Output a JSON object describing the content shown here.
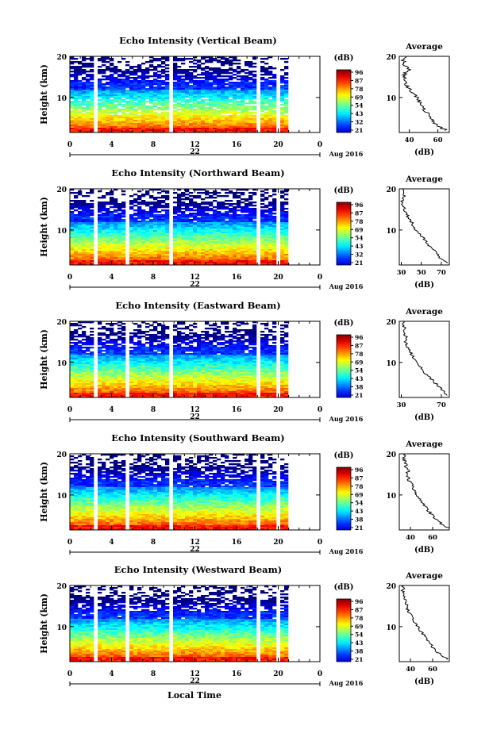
{
  "figure": {
    "date_label": "Aug 2016",
    "day_label": "22",
    "x_axis_label": "Local Time",
    "colorbar_title": "(dB)",
    "colorbar_ticks": [
      "96",
      "87",
      "78",
      "69",
      "54",
      "43",
      "32",
      "21"
    ],
    "colorbar_ticks_alt": [
      "96",
      "87",
      "78",
      "69",
      "54",
      "43",
      "38",
      "21"
    ],
    "avg_title": "Average",
    "avg_xlabel": "(dB)"
  },
  "chart_data": [
    {
      "type": "heatmap",
      "title": "Echo Intensity (Vertical Beam)",
      "ylabel": "Height (km)",
      "xlim": [
        0,
        24
      ],
      "ylim": [
        1.5,
        20
      ],
      "x_ticks": [
        "0",
        "4",
        "8",
        "12",
        "16",
        "20",
        "0"
      ],
      "y_ticks": [
        "10",
        "20"
      ],
      "colorbar": {
        "range": [
          21,
          96
        ],
        "ticks": [
          "96",
          "87",
          "78",
          "69",
          "54",
          "43",
          "32",
          "21"
        ]
      },
      "gaps_hours": [
        [
          2.0,
          2.3
        ],
        [
          2.7,
          3.0
        ],
        [
          9.3,
          9.8
        ],
        [
          17.7,
          18.0
        ],
        [
          19.8,
          20.0
        ]
      ],
      "data_end_hour": 20.7,
      "average_profile": {
        "xlim": [
          33,
          68
        ],
        "ylim": [
          1.5,
          20
        ],
        "x_ticks": [
          "40",
          "60"
        ],
        "y_ticks": [
          "10",
          "20"
        ],
        "height": [
          2,
          3,
          4,
          5,
          6,
          7,
          8,
          9,
          10,
          11,
          12,
          13,
          14,
          15,
          16,
          17,
          18,
          19,
          20
        ],
        "value": [
          66,
          60,
          57,
          55,
          53,
          51,
          50,
          47,
          45,
          42,
          40,
          38,
          37,
          36,
          37,
          40,
          36,
          36,
          38
        ]
      }
    },
    {
      "type": "heatmap",
      "title": "Echo Intensity (Northward Beam)",
      "ylabel": "Height (km)",
      "xlim": [
        0,
        24
      ],
      "ylim": [
        1.5,
        20
      ],
      "x_ticks": [
        "0",
        "4",
        "8",
        "12",
        "16",
        "20",
        "0"
      ],
      "y_ticks": [
        "10",
        "20"
      ],
      "colorbar": {
        "range": [
          21,
          96
        ],
        "ticks": [
          "96",
          "87",
          "78",
          "69",
          "54",
          "43",
          "32",
          "21"
        ]
      },
      "gaps_hours": [
        [
          2.0,
          2.3
        ],
        [
          2.7,
          3.0
        ],
        [
          5.3,
          5.6
        ],
        [
          9.3,
          9.8
        ],
        [
          17.7,
          18.0
        ],
        [
          19.8,
          20.0
        ]
      ],
      "data_end_hour": 20.7,
      "average_profile": {
        "xlim": [
          28,
          78
        ],
        "ylim": [
          1.5,
          20
        ],
        "x_ticks": [
          "30",
          "50",
          "70"
        ],
        "y_ticks": [
          "10",
          "20"
        ],
        "height": [
          2,
          3,
          4,
          5,
          6,
          7,
          8,
          9,
          10,
          11,
          12,
          13,
          14,
          15,
          16,
          17,
          18,
          19,
          20
        ],
        "value": [
          76,
          70,
          66,
          63,
          58,
          55,
          52,
          48,
          45,
          42,
          40,
          37,
          35,
          33,
          32,
          31,
          33,
          31,
          31
        ]
      }
    },
    {
      "type": "heatmap",
      "title": "Echo Intensity (Eastward Beam)",
      "ylabel": "Height (km)",
      "xlim": [
        0,
        24
      ],
      "ylim": [
        1.5,
        20
      ],
      "x_ticks": [
        "0",
        "4",
        "8",
        "12",
        "16",
        "20",
        "0"
      ],
      "y_ticks": [
        "10",
        "20"
      ],
      "colorbar": {
        "range": [
          21,
          96
        ],
        "ticks": [
          "96",
          "87",
          "78",
          "69",
          "54",
          "43",
          "38",
          "21"
        ]
      },
      "gaps_hours": [
        [
          2.0,
          2.3
        ],
        [
          2.7,
          3.0
        ],
        [
          5.3,
          5.6
        ],
        [
          9.3,
          9.8
        ],
        [
          17.7,
          18.0
        ],
        [
          19.8,
          20.0
        ]
      ],
      "data_end_hour": 20.7,
      "average_profile": {
        "xlim": [
          28,
          78
        ],
        "ylim": [
          1.5,
          20
        ],
        "x_ticks": [
          "30",
          "70"
        ],
        "y_ticks": [
          "10",
          "20"
        ],
        "height": [
          2,
          3,
          4,
          5,
          6,
          7,
          8,
          9,
          10,
          11,
          12,
          13,
          14,
          15,
          16,
          17,
          18,
          19,
          20
        ],
        "value": [
          76,
          72,
          68,
          64,
          60,
          56,
          52,
          49,
          46,
          43,
          40,
          38,
          36,
          34,
          35,
          33,
          34,
          32,
          33
        ]
      }
    },
    {
      "type": "heatmap",
      "title": "Echo Intensity (Southward Beam)",
      "ylabel": "Height (km)",
      "xlim": [
        0,
        24
      ],
      "ylim": [
        1.5,
        20
      ],
      "x_ticks": [
        "0",
        "4",
        "8",
        "12",
        "16",
        "20",
        "0"
      ],
      "y_ticks": [
        "10",
        "20"
      ],
      "colorbar": {
        "range": [
          21,
          96
        ],
        "ticks": [
          "96",
          "87",
          "78",
          "69",
          "54",
          "43",
          "38",
          "21"
        ]
      },
      "gaps_hours": [
        [
          2.0,
          2.3
        ],
        [
          2.7,
          3.0
        ],
        [
          5.3,
          5.6
        ],
        [
          9.3,
          9.8
        ],
        [
          17.7,
          18.0
        ],
        [
          19.8,
          20.0
        ]
      ],
      "data_end_hour": 20.7,
      "average_profile": {
        "xlim": [
          30,
          75
        ],
        "ylim": [
          1.5,
          20
        ],
        "x_ticks": [
          "40",
          "60"
        ],
        "y_ticks": [
          "10",
          "20"
        ],
        "height": [
          2,
          3,
          4,
          5,
          6,
          7,
          8,
          9,
          10,
          11,
          12,
          13,
          14,
          15,
          16,
          17,
          18,
          19,
          20
        ],
        "value": [
          74,
          68,
          64,
          60,
          57,
          54,
          51,
          48,
          46,
          44,
          42,
          40,
          38,
          37,
          38,
          36,
          35,
          34,
          35
        ]
      }
    },
    {
      "type": "heatmap",
      "title": "Echo Intensity (Westward Beam)",
      "ylabel": "Height (km)",
      "xlim": [
        0,
        24
      ],
      "ylim": [
        1.5,
        20
      ],
      "x_ticks": [
        "0",
        "4",
        "8",
        "12",
        "16",
        "20",
        "0"
      ],
      "y_ticks": [
        "10",
        "20"
      ],
      "colorbar": {
        "range": [
          21,
          96
        ],
        "ticks": [
          "96",
          "87",
          "78",
          "69",
          "54",
          "43",
          "38",
          "21"
        ]
      },
      "gaps_hours": [
        [
          2.0,
          2.3
        ],
        [
          2.7,
          3.0
        ],
        [
          5.3,
          5.6
        ],
        [
          9.3,
          9.8
        ],
        [
          17.7,
          18.0
        ],
        [
          19.8,
          20.0
        ]
      ],
      "data_end_hour": 20.7,
      "average_profile": {
        "xlim": [
          30,
          75
        ],
        "ylim": [
          1.5,
          20
        ],
        "x_ticks": [
          "40",
          "60"
        ],
        "y_ticks": [
          "10",
          "20"
        ],
        "height": [
          2,
          3,
          4,
          5,
          6,
          7,
          8,
          9,
          10,
          11,
          12,
          13,
          14,
          15,
          16,
          17,
          18,
          19,
          20
        ],
        "value": [
          74,
          68,
          64,
          60,
          57,
          55,
          52,
          49,
          46,
          44,
          42,
          40,
          38,
          36,
          37,
          35,
          34,
          33,
          34
        ]
      }
    }
  ]
}
